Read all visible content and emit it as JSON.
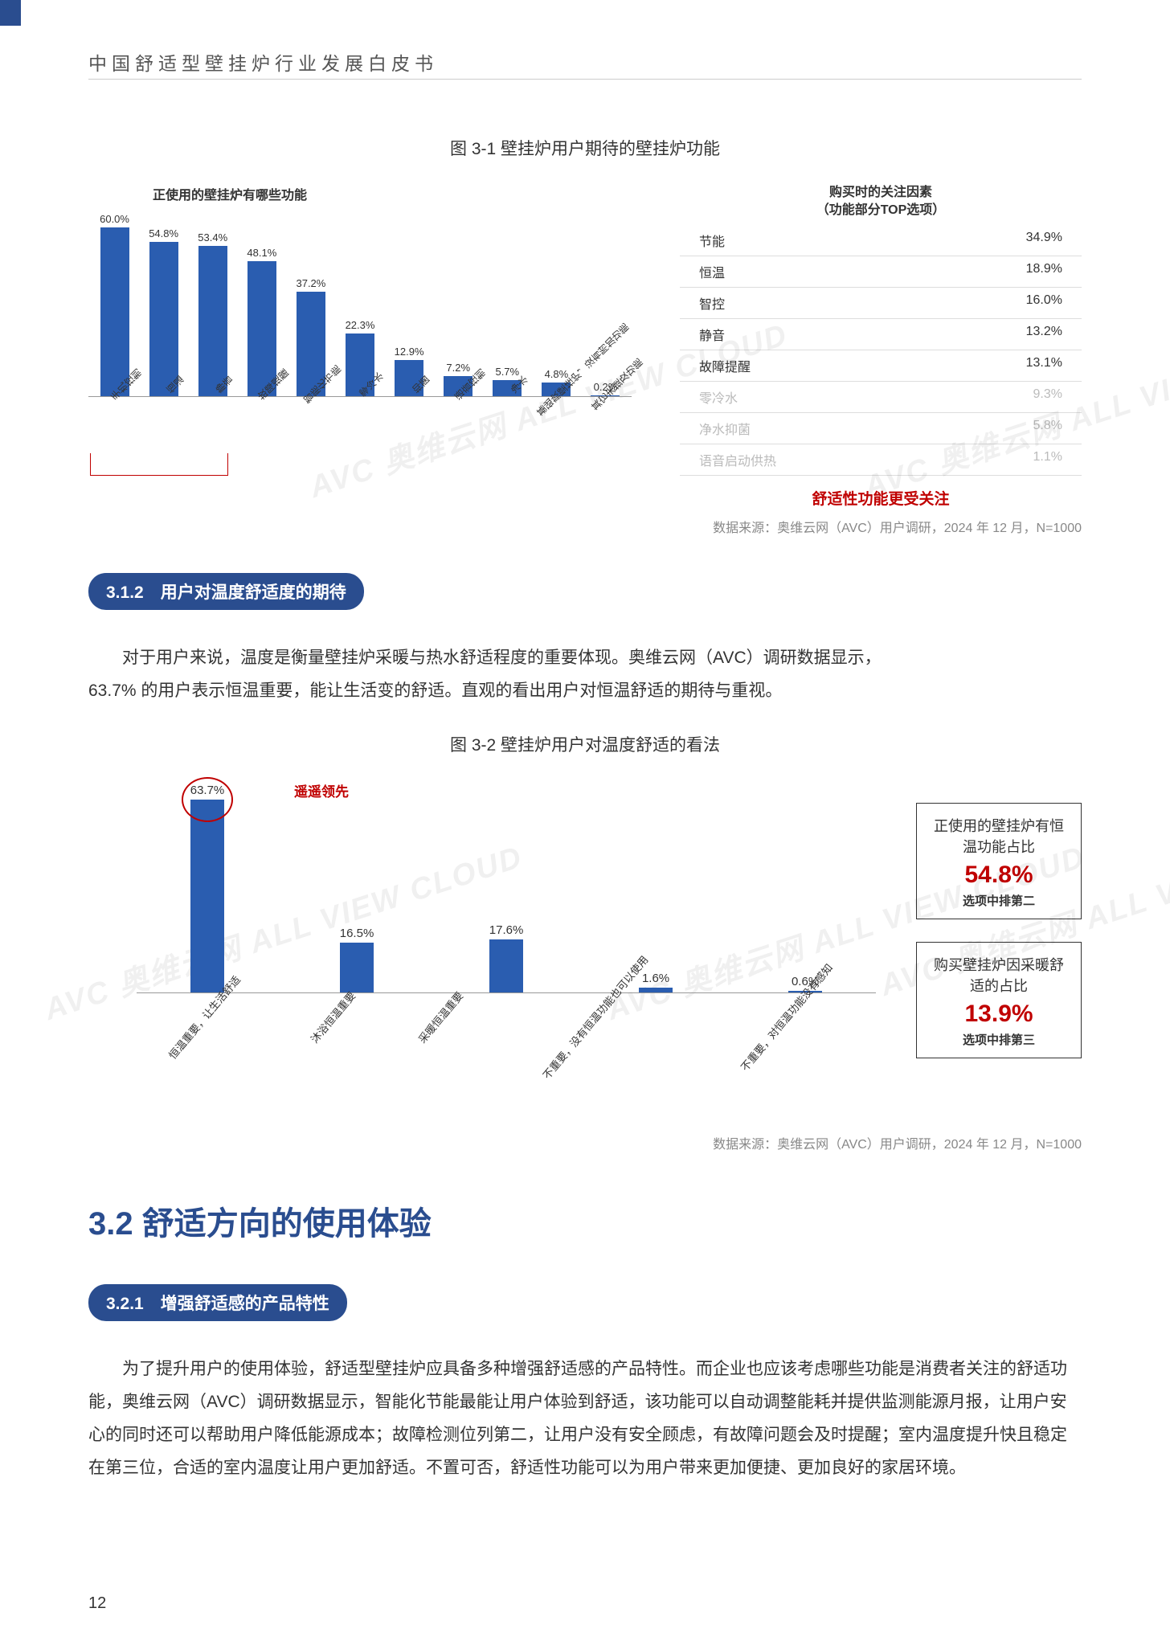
{
  "doc_title": "中国舒适型壁挂炉行业发展白皮书",
  "page_number": "12",
  "watermark_text": "AVC 奥维云网  ALL VIEW CLOUD",
  "chart31": {
    "title": "图 3-1 壁挂炉用户期待的壁挂炉功能",
    "left_title": "正使用的壁挂炉有哪些功能",
    "bars": [
      {
        "label": "手机控制",
        "value": 60.0,
        "display": "60.0%"
      },
      {
        "label": "恒温",
        "value": 54.8,
        "display": "54.8%"
      },
      {
        "label": "静音",
        "value": 53.4,
        "display": "53.4%"
      },
      {
        "label": "故障提醒",
        "value": 48.1,
        "display": "48.1%"
      },
      {
        "label": "智能化节能",
        "value": 37.2,
        "display": "37.2%"
      },
      {
        "label": "零冷水",
        "value": 22.3,
        "display": "22.3%"
      },
      {
        "label": "抑菌",
        "value": 12.9,
        "display": "12.9%"
      },
      {
        "label": "语音控制",
        "value": 7.2,
        "display": "7.2%"
      },
      {
        "label": "净水",
        "value": 5.7,
        "display": "5.7%"
      },
      {
        "label": "基础款壁挂炉，没有附加功能",
        "value": 4.8,
        "display": "4.8%"
      },
      {
        "label": "其它未提及功能",
        "value": 0.2,
        "display": "0.2%"
      }
    ],
    "ylim": 60.0,
    "bar_color": "#2a5db0",
    "right_title_l1": "购买时的关注因素",
    "right_title_l2": "（功能部分TOP选项）",
    "factors": [
      {
        "name": "节能",
        "value": "34.9%",
        "faded": false
      },
      {
        "name": "恒温",
        "value": "18.9%",
        "faded": false
      },
      {
        "name": "智控",
        "value": "16.0%",
        "faded": false
      },
      {
        "name": "静音",
        "value": "13.2%",
        "faded": false
      },
      {
        "name": "故障提醒",
        "value": "13.1%",
        "faded": false
      },
      {
        "name": "零冷水",
        "value": "9.3%",
        "faded": true
      },
      {
        "name": "净水抑菌",
        "value": "5.8%",
        "faded": true
      },
      {
        "name": "语音启动供热",
        "value": "1.1%",
        "faded": true
      }
    ],
    "right_caption": "舒适性功能更受关注",
    "source": "数据来源：奥维云网（AVC）用户调研，2024 年 12 月，N=1000"
  },
  "section_312": {
    "pill": "3.1.2　用户对温度舒适度的期待",
    "body_l1": "对于用户来说，温度是衡量壁挂炉采暖与热水舒适程度的重要体现。奥维云网（AVC）调研数据显示，",
    "body_l2": "63.7% 的用户表示恒温重要，能让生活变的舒适。直观的看出用户对恒温舒适的期待与重视。"
  },
  "chart32": {
    "title": "图 3-2 壁挂炉用户对温度舒适的看法",
    "bars": [
      {
        "label": "恒温重要，让生活舒适",
        "value": 63.7,
        "display": "63.7%",
        "highlight": true
      },
      {
        "label": "沐浴恒温重要",
        "value": 16.5,
        "display": "16.5%",
        "highlight": false
      },
      {
        "label": "采暖恒温重要",
        "value": 17.6,
        "display": "17.6%",
        "highlight": false
      },
      {
        "label": "不重要，没有恒温功能也可以使用",
        "value": 1.6,
        "display": "1.6%",
        "highlight": false
      },
      {
        "label": "不重要，对恒温功能没有感知",
        "value": 0.6,
        "display": "0.6%",
        "highlight": false
      }
    ],
    "ylim": 63.7,
    "lead_label": "遥遥领先",
    "bar_color": "#2a5db0",
    "box1": {
      "title": "正使用的壁挂炉有恒温功能占比",
      "value": "54.8%",
      "sub": "选项中排第二"
    },
    "box2": {
      "title": "购买壁挂炉因采暖舒适的占比",
      "value": "13.9%",
      "sub": "选项中排第三"
    },
    "source": "数据来源：奥维云网（AVC）用户调研，2024 年 12 月，N=1000"
  },
  "section_32": {
    "h2": "3.2 舒适方向的使用体验",
    "pill": "3.2.1　增强舒适感的产品特性",
    "body": "为了提升用户的使用体验，舒适型壁挂炉应具备多种增强舒适感的产品特性。而企业也应该考虑哪些功能是消费者关注的舒适功能，奥维云网（AVC）调研数据显示，智能化节能最能让用户体验到舒适，该功能可以自动调整能耗并提供监测能源月报，让用户安心的同时还可以帮助用户降低能源成本；故障检测位列第二，让用户没有安全顾虑，有故障问题会及时提醒；室内温度提升快且稳定在第三位，合适的室内温度让用户更加舒适。不置可否，舒适性功能可以为用户带来更加便捷、更加良好的家居环境。"
  }
}
